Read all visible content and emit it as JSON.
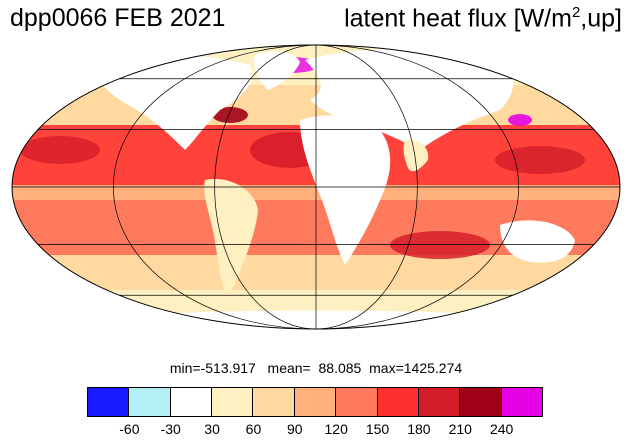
{
  "header": {
    "left_title": "dpp0066 FEB 2021",
    "right_title_prefix": "latent heat flux [W/m",
    "right_title_sup": "2",
    "right_title_suffix": ",up]"
  },
  "stats": {
    "min": "-513.917",
    "mean": "88.085",
    "max": "1425.274"
  },
  "colorbar": {
    "colors": [
      "#1a1aff",
      "#b2f0f5",
      "#ffffff",
      "#fff0c2",
      "#ffd9a0",
      "#ffb07c",
      "#ff7a5c",
      "#ff3030",
      "#d61e2a",
      "#a00018",
      "#e600e6"
    ],
    "labels": [
      "-60",
      "-30",
      "30",
      "60",
      "90",
      "120",
      "150",
      "180",
      "210",
      "240"
    ]
  },
  "map": {
    "projection": "mollweide",
    "graticule": true,
    "ocean_base_color": "#ffb07c",
    "land_color": "#ffffff"
  }
}
